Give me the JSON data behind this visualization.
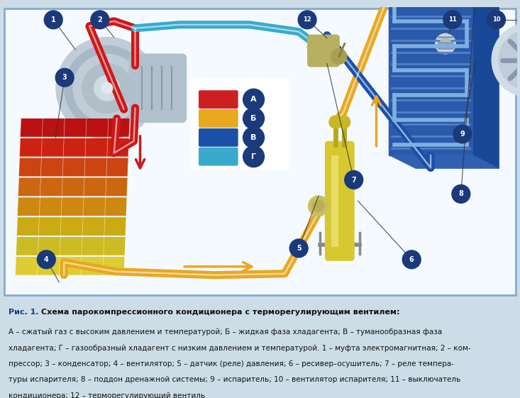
{
  "bg_color": "#ccdde8",
  "diagram_bg": "#f0f8ff",
  "label_bg": "#1a3a7a",
  "label_fg": "#ffffff",
  "border_color": "#88aacc",
  "legend": [
    {
      "label": "А",
      "color": "#cc2020"
    },
    {
      "label": "Б",
      "color": "#e8a820"
    },
    {
      "label": "В",
      "color": "#1a50a8"
    },
    {
      "label": "Г",
      "color": "#38aacc"
    }
  ],
  "red_color": "#cc1818",
  "orange_color": "#e8a820",
  "blue_dark": "#1a50a8",
  "blue_light": "#38aacc",
  "fig_width": 7.33,
  "fig_height": 5.61,
  "caption_title_bold": "Рис. 1.",
  "caption_title_rest": " Схема парокомпрессионного кондиционера с терморегулирующим вентилем:",
  "caption_lines": [
    "А – сжатый газ с высоким давлением и температурой; Б – жидкая фаза хладагента; В – туманообразная фаза",
    "хладагента; Г – газообразный хладагент с низким давлением и температурой. 1 – муфта электромагнитная; 2 – ком-",
    "прессор; 3 – конденсатор; 4 – вентилятор; 5 – датчик (реле) давления; 6 – ресивер–осушитель; 7 – реле темпера-",
    "туры испарителя; 8 – поддон дренажной системы; 9 – испаритель; 10 – вентилятор испарителя; 11 – выключатель",
    "кондиционера; 12 – терморегулирующий вентиль"
  ]
}
